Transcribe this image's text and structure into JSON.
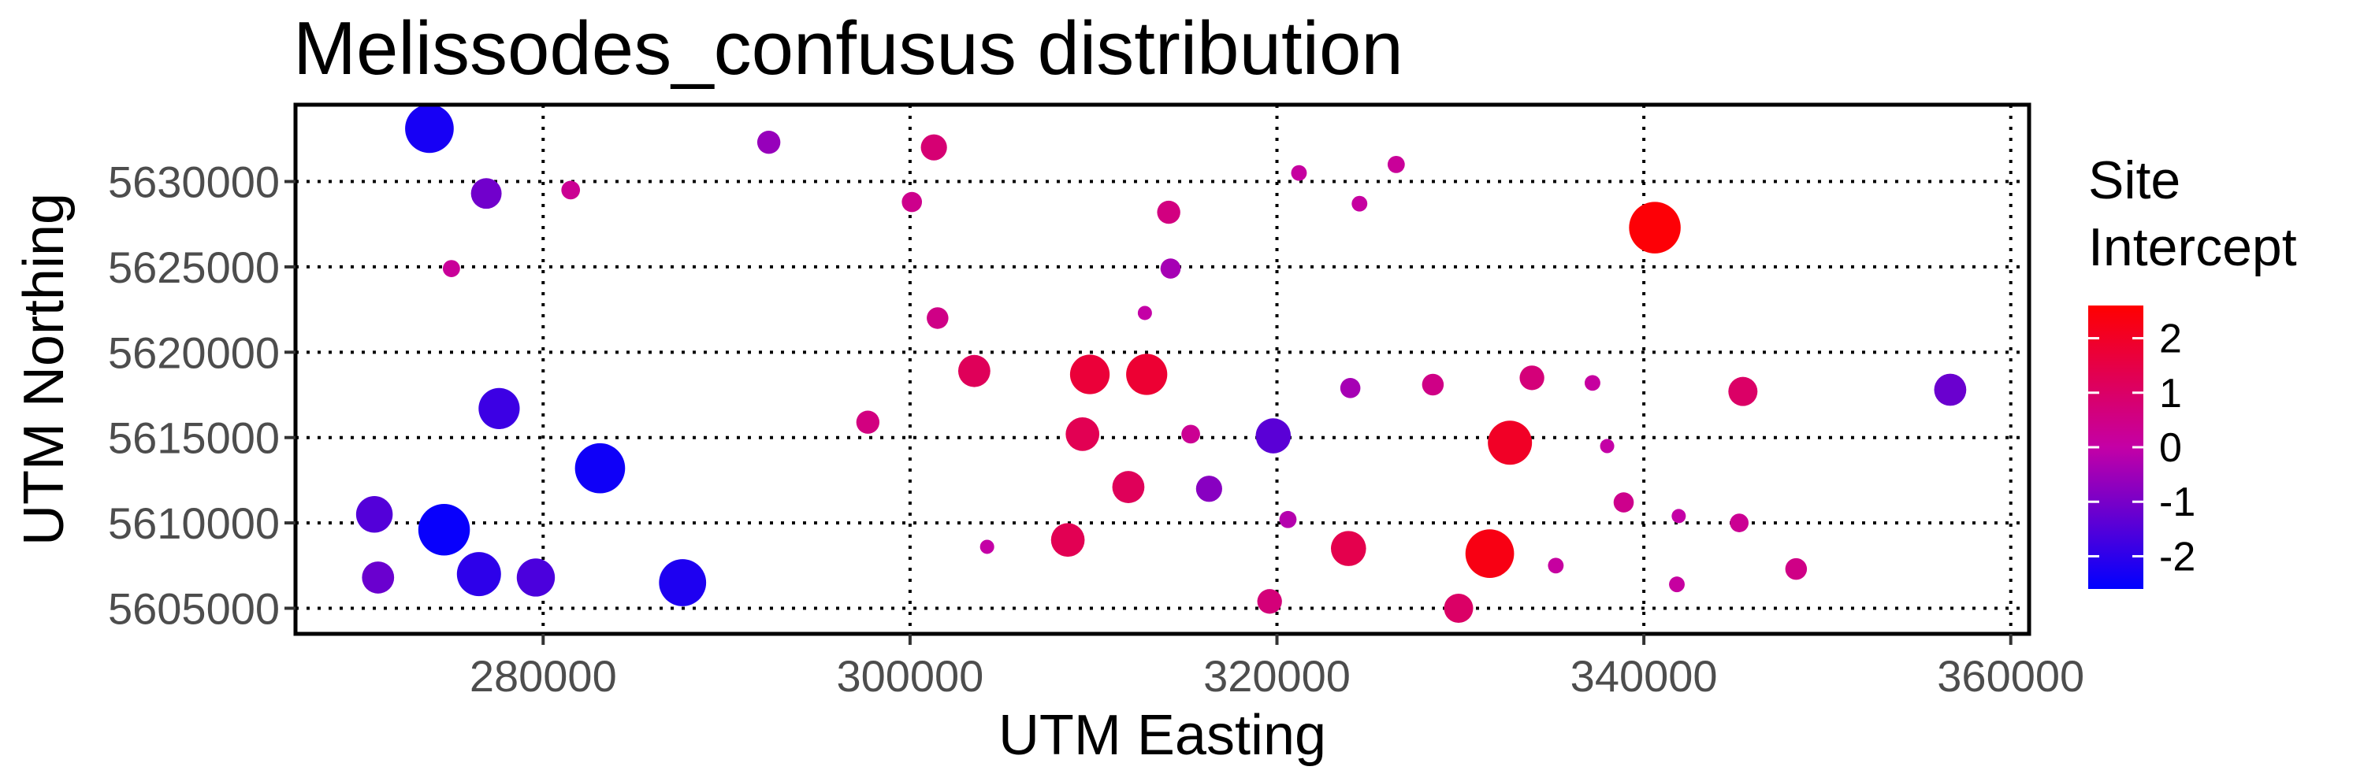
{
  "chart_data": {
    "type": "scatter",
    "title": "Melissodes_confusus distribution",
    "xlabel": "UTM Easting",
    "ylabel": "UTM Northing",
    "xlim": [
      266500,
      361000
    ],
    "ylim": [
      5603500,
      5634500
    ],
    "xticks": [
      280000,
      300000,
      320000,
      340000,
      360000
    ],
    "xtick_labels": [
      "280000",
      "300000",
      "320000",
      "340000",
      "360000"
    ],
    "yticks": [
      5605000,
      5610000,
      5615000,
      5620000,
      5625000,
      5630000
    ],
    "ytick_labels": [
      "5605000",
      "5610000",
      "5615000",
      "5620000",
      "5625000",
      "5630000"
    ],
    "grid": true,
    "legend": {
      "title_lines": [
        "Site",
        "Intercept"
      ],
      "placement": "right",
      "breaks": [
        2,
        1,
        0,
        -1,
        -2
      ],
      "break_labels": [
        "2",
        "1",
        "0",
        "-1",
        "-2"
      ],
      "range": [
        -2.6,
        2.6
      ],
      "color_low": "#0000ff",
      "color_mid": "#c400a6",
      "color_high": "#ff0000"
    },
    "encoding": {
      "color": "Site Intercept",
      "size": "|Site Intercept|"
    },
    "points": [
      {
        "x": 273800,
        "y": 5633100,
        "v": -2.3
      },
      {
        "x": 276900,
        "y": 5629300,
        "v": -1.1
      },
      {
        "x": 281500,
        "y": 5629500,
        "v": 0.3
      },
      {
        "x": 292300,
        "y": 5632300,
        "v": -0.6
      },
      {
        "x": 301300,
        "y": 5632000,
        "v": 0.8
      },
      {
        "x": 300100,
        "y": 5628800,
        "v": 0.4
      },
      {
        "x": 321200,
        "y": 5630500,
        "v": 0.1
      },
      {
        "x": 326500,
        "y": 5631000,
        "v": 0.2
      },
      {
        "x": 324500,
        "y": 5628700,
        "v": 0.1
      },
      {
        "x": 314100,
        "y": 5628200,
        "v": 0.6
      },
      {
        "x": 340600,
        "y": 5627300,
        "v": 2.5
      },
      {
        "x": 275000,
        "y": 5624900,
        "v": 0.2
      },
      {
        "x": 314200,
        "y": 5624900,
        "v": -0.4
      },
      {
        "x": 301500,
        "y": 5622000,
        "v": 0.5
      },
      {
        "x": 312800,
        "y": 5622300,
        "v": 0.0
      },
      {
        "x": 303500,
        "y": 5618900,
        "v": 1.2
      },
      {
        "x": 309800,
        "y": 5618700,
        "v": 1.7
      },
      {
        "x": 312900,
        "y": 5618700,
        "v": 1.8
      },
      {
        "x": 324000,
        "y": 5617900,
        "v": -0.4
      },
      {
        "x": 328500,
        "y": 5618100,
        "v": 0.5
      },
      {
        "x": 333900,
        "y": 5618500,
        "v": 0.7
      },
      {
        "x": 337200,
        "y": 5618200,
        "v": 0.1
      },
      {
        "x": 345400,
        "y": 5617700,
        "v": 1.0
      },
      {
        "x": 356700,
        "y": 5617800,
        "v": -1.2
      },
      {
        "x": 277600,
        "y": 5616700,
        "v": -1.8
      },
      {
        "x": 297700,
        "y": 5615900,
        "v": 0.6
      },
      {
        "x": 309400,
        "y": 5615200,
        "v": 1.3
      },
      {
        "x": 315300,
        "y": 5615200,
        "v": 0.3
      },
      {
        "x": 319800,
        "y": 5615100,
        "v": -1.4
      },
      {
        "x": 332700,
        "y": 5614700,
        "v": 2.0
      },
      {
        "x": 338000,
        "y": 5614500,
        "v": 0.0
      },
      {
        "x": 283100,
        "y": 5613200,
        "v": -2.4
      },
      {
        "x": 311900,
        "y": 5612100,
        "v": 1.2
      },
      {
        "x": 316300,
        "y": 5612000,
        "v": -0.8
      },
      {
        "x": 338900,
        "y": 5611200,
        "v": 0.4
      },
      {
        "x": 270800,
        "y": 5610500,
        "v": -1.5
      },
      {
        "x": 274600,
        "y": 5609600,
        "v": -2.5
      },
      {
        "x": 320600,
        "y": 5610200,
        "v": -0.2
      },
      {
        "x": 341900,
        "y": 5610400,
        "v": 0.0
      },
      {
        "x": 345200,
        "y": 5610000,
        "v": 0.3
      },
      {
        "x": 304200,
        "y": 5608600,
        "v": 0.0
      },
      {
        "x": 308600,
        "y": 5609000,
        "v": 1.3
      },
      {
        "x": 323900,
        "y": 5608500,
        "v": 1.4
      },
      {
        "x": 331600,
        "y": 5608200,
        "v": 2.3
      },
      {
        "x": 271000,
        "y": 5606800,
        "v": -1.2
      },
      {
        "x": 276500,
        "y": 5607000,
        "v": -2.0
      },
      {
        "x": 279600,
        "y": 5606800,
        "v": -1.6
      },
      {
        "x": 287600,
        "y": 5606500,
        "v": -2.2
      },
      {
        "x": 335200,
        "y": 5607500,
        "v": 0.1
      },
      {
        "x": 348300,
        "y": 5607300,
        "v": 0.5
      },
      {
        "x": 341800,
        "y": 5606400,
        "v": 0.1
      },
      {
        "x": 319600,
        "y": 5605400,
        "v": 0.7
      },
      {
        "x": 329900,
        "y": 5605000,
        "v": 1.0
      }
    ]
  }
}
